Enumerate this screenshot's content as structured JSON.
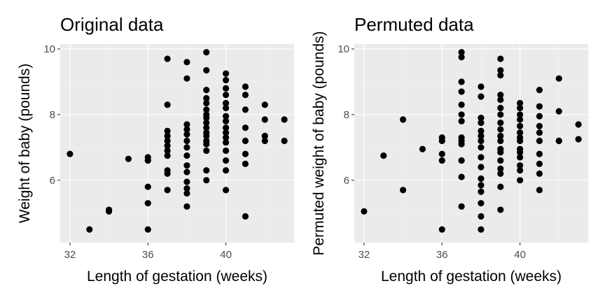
{
  "chart_data": [
    {
      "type": "scatter",
      "title": "Original data",
      "xlabel": "Length of gestation (weeks)",
      "ylabel": "Weight of baby (pounds)",
      "xlim": [
        31.5,
        43.5
      ],
      "ylim": [
        4.1,
        10.15
      ],
      "x_ticks": [
        32,
        36,
        40
      ],
      "y_ticks": [
        6,
        8,
        10
      ],
      "grid": true,
      "points": [
        [
          32,
          6.8
        ],
        [
          33,
          4.5
        ],
        [
          34,
          5.1
        ],
        [
          34,
          5.05
        ],
        [
          35,
          6.65
        ],
        [
          36,
          6.7
        ],
        [
          36,
          6.6
        ],
        [
          36,
          5.8
        ],
        [
          36,
          5.3
        ],
        [
          36,
          4.5
        ],
        [
          37,
          9.7
        ],
        [
          37,
          8.3
        ],
        [
          37,
          7.5
        ],
        [
          37,
          7.35
        ],
        [
          37,
          7.2
        ],
        [
          37,
          7.05
        ],
        [
          37,
          6.9
        ],
        [
          37,
          6.75
        ],
        [
          37,
          6.3
        ],
        [
          37,
          6.2
        ],
        [
          37,
          5.7
        ],
        [
          38,
          9.6
        ],
        [
          38,
          9.1
        ],
        [
          38,
          7.7
        ],
        [
          38,
          7.55
        ],
        [
          38,
          7.4
        ],
        [
          38,
          7.2
        ],
        [
          38,
          7.0
        ],
        [
          38,
          6.75
        ],
        [
          38,
          6.45
        ],
        [
          38,
          6.25
        ],
        [
          38,
          5.95
        ],
        [
          38,
          5.75
        ],
        [
          38,
          5.6
        ],
        [
          38,
          5.2
        ],
        [
          39,
          9.9
        ],
        [
          39,
          9.35
        ],
        [
          39,
          8.75
        ],
        [
          39,
          8.5
        ],
        [
          39,
          8.35
        ],
        [
          39,
          8.15
        ],
        [
          39,
          8.0
        ],
        [
          39,
          7.9
        ],
        [
          39,
          7.75
        ],
        [
          39,
          7.6
        ],
        [
          39,
          7.45
        ],
        [
          39,
          7.35
        ],
        [
          39,
          7.2
        ],
        [
          39,
          7.1
        ],
        [
          39,
          6.9
        ],
        [
          39,
          6.3
        ],
        [
          39,
          6.0
        ],
        [
          40,
          9.25
        ],
        [
          40,
          9.05
        ],
        [
          40,
          8.8
        ],
        [
          40,
          8.6
        ],
        [
          40,
          8.35
        ],
        [
          40,
          8.2
        ],
        [
          40,
          7.95
        ],
        [
          40,
          7.8
        ],
        [
          40,
          7.6
        ],
        [
          40,
          7.45
        ],
        [
          40,
          7.3
        ],
        [
          40,
          7.15
        ],
        [
          40,
          6.9
        ],
        [
          40,
          6.6
        ],
        [
          40,
          6.3
        ],
        [
          40,
          5.7
        ],
        [
          41,
          8.85
        ],
        [
          41,
          8.6
        ],
        [
          41,
          8.15
        ],
        [
          41,
          7.6
        ],
        [
          41,
          7.2
        ],
        [
          41,
          6.8
        ],
        [
          41,
          6.5
        ],
        [
          41,
          4.9
        ],
        [
          42,
          8.3
        ],
        [
          42,
          7.85
        ],
        [
          42,
          7.35
        ],
        [
          42,
          7.2
        ],
        [
          43,
          7.85
        ],
        [
          43,
          7.2
        ]
      ]
    },
    {
      "type": "scatter",
      "title": "Permuted data",
      "xlabel": "Length of gestation (weeks)",
      "ylabel": "Permuted weight of baby (pounds)",
      "xlim": [
        31.5,
        43.5
      ],
      "ylim": [
        4.1,
        10.15
      ],
      "x_ticks": [
        32,
        36,
        40
      ],
      "y_ticks": [
        6,
        8,
        10
      ],
      "grid": true,
      "points": [
        [
          32,
          5.05
        ],
        [
          33,
          6.75
        ],
        [
          34,
          7.85
        ],
        [
          34,
          5.7
        ],
        [
          35,
          6.95
        ],
        [
          36,
          7.3
        ],
        [
          36,
          7.2
        ],
        [
          36,
          6.8
        ],
        [
          36,
          6.6
        ],
        [
          36,
          4.5
        ],
        [
          37,
          9.9
        ],
        [
          37,
          9.75
        ],
        [
          37,
          9.0
        ],
        [
          37,
          8.7
        ],
        [
          37,
          8.3
        ],
        [
          37,
          8.0
        ],
        [
          37,
          7.8
        ],
        [
          37,
          7.3
        ],
        [
          37,
          7.2
        ],
        [
          37,
          7.1
        ],
        [
          37,
          6.6
        ],
        [
          37,
          6.1
        ],
        [
          37,
          5.2
        ],
        [
          38,
          8.85
        ],
        [
          38,
          8.55
        ],
        [
          38,
          7.9
        ],
        [
          38,
          7.75
        ],
        [
          38,
          7.5
        ],
        [
          38,
          7.35
        ],
        [
          38,
          7.2
        ],
        [
          38,
          7.0
        ],
        [
          38,
          6.7
        ],
        [
          38,
          6.4
        ],
        [
          38,
          6.05
        ],
        [
          38,
          5.85
        ],
        [
          38,
          5.65
        ],
        [
          38,
          5.3
        ],
        [
          38,
          4.9
        ],
        [
          38,
          4.5
        ],
        [
          39,
          9.7
        ],
        [
          39,
          9.35
        ],
        [
          39,
          9.2
        ],
        [
          39,
          8.6
        ],
        [
          39,
          8.45
        ],
        [
          39,
          8.2
        ],
        [
          39,
          8.0
        ],
        [
          39,
          7.75
        ],
        [
          39,
          7.55
        ],
        [
          39,
          7.35
        ],
        [
          39,
          7.2
        ],
        [
          39,
          6.95
        ],
        [
          39,
          6.85
        ],
        [
          39,
          6.6
        ],
        [
          39,
          6.35
        ],
        [
          39,
          6.2
        ],
        [
          39,
          5.8
        ],
        [
          39,
          5.1
        ],
        [
          40,
          8.35
        ],
        [
          40,
          8.2
        ],
        [
          40,
          8.0
        ],
        [
          40,
          7.85
        ],
        [
          40,
          7.65
        ],
        [
          40,
          7.45
        ],
        [
          40,
          7.3
        ],
        [
          40,
          7.2
        ],
        [
          40,
          6.95
        ],
        [
          40,
          6.85
        ],
        [
          40,
          6.7
        ],
        [
          40,
          6.45
        ],
        [
          40,
          6.3
        ],
        [
          40,
          6.0
        ],
        [
          41,
          8.75
        ],
        [
          41,
          8.25
        ],
        [
          41,
          7.95
        ],
        [
          41,
          7.65
        ],
        [
          41,
          7.45
        ],
        [
          41,
          7.2
        ],
        [
          41,
          6.8
        ],
        [
          41,
          6.5
        ],
        [
          41,
          6.2
        ],
        [
          41,
          5.7
        ],
        [
          42,
          9.1
        ],
        [
          42,
          8.1
        ],
        [
          42,
          7.2
        ],
        [
          42,
          7.2
        ],
        [
          43,
          7.7
        ],
        [
          43,
          7.25
        ]
      ]
    }
  ]
}
